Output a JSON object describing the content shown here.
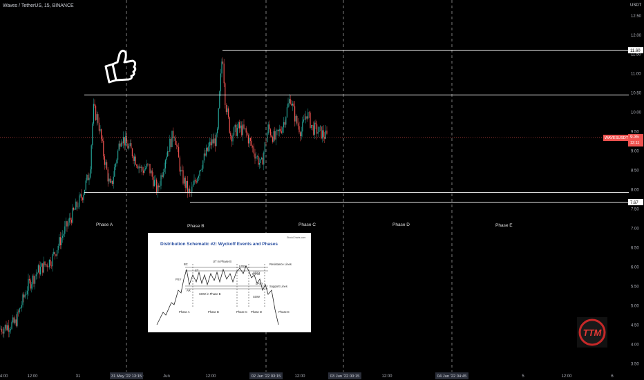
{
  "header": {
    "title": "Waves / TetherUS, 15, BINANCE"
  },
  "colors": {
    "up": "#26a69a",
    "down": "#ef5350",
    "background": "#000000",
    "price_line": "#ef5350",
    "level_line": "#ffffff"
  },
  "chart_data": {
    "type": "candlestick",
    "symbol_title": "Waves / TetherUS, 15, BINANCE",
    "currency": "USDT",
    "y_ticks": [
      "12.50",
      "12.00",
      "11.50",
      "11.00",
      "10.50",
      "10.00",
      "9.50",
      "9.00",
      "8.50",
      "8.00",
      "7.50",
      "7.00",
      "6.50",
      "6.00",
      "5.50",
      "5.00",
      "4.50",
      "4.00",
      "3.50"
    ],
    "ylim": [
      3.4,
      12.8
    ],
    "x_ticks": [
      "04:00",
      "12:00",
      "31",
      "12:00",
      "Jun",
      "12:00",
      "12:00",
      "12:00",
      "5",
      "12:00",
      "6"
    ],
    "x_highlight_ticks": [
      "31 May '22  13:15",
      "02 Jun '22  03:15",
      "03 Jun '22  00:15",
      "04 Jun '22  04:45"
    ],
    "price_marker": {
      "label": "WAVESUSDT",
      "value": "9.35",
      "countdown": "12:11",
      "y": 9.35
    },
    "levels": [
      {
        "label": "11.60",
        "y": 11.6
      },
      {
        "label": "7.67",
        "y": 7.67
      },
      {
        "y": 10.45
      },
      {
        "y": 7.93
      }
    ],
    "phases": [
      "Phase A",
      "Phase B",
      "Phase C",
      "Phase D",
      "Phase E"
    ],
    "path": [
      [
        0,
        4.4
      ],
      [
        22,
        4.55
      ],
      [
        40,
        5.5
      ],
      [
        55,
        5.9
      ],
      [
        75,
        6.2
      ],
      [
        95,
        7.0
      ],
      [
        120,
        7.9
      ],
      [
        130,
        8.5
      ],
      [
        135,
        10.1
      ],
      [
        142,
        9.8
      ],
      [
        150,
        8.9
      ],
      [
        160,
        8.0
      ],
      [
        175,
        9.4
      ],
      [
        190,
        9.0
      ],
      [
        205,
        8.5
      ],
      [
        215,
        8.6
      ],
      [
        228,
        7.95
      ],
      [
        240,
        8.9
      ],
      [
        252,
        9.5
      ],
      [
        262,
        8.4
      ],
      [
        275,
        7.85
      ],
      [
        290,
        8.6
      ],
      [
        305,
        9.2
      ],
      [
        314,
        9.3
      ],
      [
        318,
        10.5
      ],
      [
        322,
        11.6
      ],
      [
        326,
        10.3
      ],
      [
        334,
        9.4
      ],
      [
        345,
        9.6
      ],
      [
        355,
        9.5
      ],
      [
        365,
        9.1
      ],
      [
        378,
        8.6
      ],
      [
        388,
        9.6
      ],
      [
        398,
        9.3
      ],
      [
        410,
        9.7
      ],
      [
        420,
        10.4
      ],
      [
        428,
        9.8
      ],
      [
        436,
        9.5
      ],
      [
        444,
        10.0
      ],
      [
        452,
        9.6
      ],
      [
        462,
        9.5
      ],
      [
        474,
        9.35
      ]
    ]
  },
  "inset": {
    "title": "Distribution Schematic #2: Wyckoff Events and Phases",
    "source": "StockCharts.com",
    "events": [
      "PSY",
      "BC",
      "ST",
      "AR",
      "UT in Phase B",
      "LPSY",
      "UTAD",
      "LPSY",
      "LPSY",
      "SOW in Phase B",
      "SOW",
      "Resistance Lines",
      "Support Lines"
    ],
    "phases": [
      "Phase A",
      "Phase B",
      "Phase C",
      "Phase D",
      "Phase E"
    ]
  },
  "logo": {
    "text": "TTM"
  }
}
